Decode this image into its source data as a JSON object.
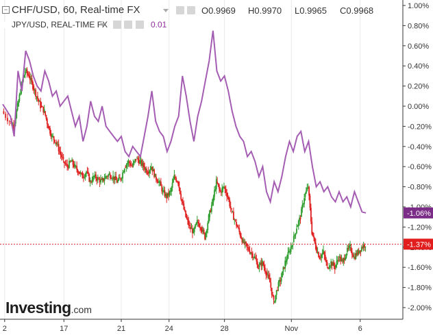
{
  "header": {
    "symbol_title": "CHF/USD, 60, Real-time FX",
    "ohlc": [
      {
        "label": "O",
        "value": "0.9969"
      },
      {
        "label": "H",
        "value": "0.9970"
      },
      {
        "label": "L",
        "value": "0.9965"
      },
      {
        "label": "C",
        "value": "0.9968"
      }
    ],
    "compare_title": "JPY/USD, REAL-TIME FX",
    "compare_value": "0.01"
  },
  "logo": {
    "text": "Investing",
    "suffix": ".com"
  },
  "colors": {
    "compare_line": "#a45cb3",
    "up_candle": "#2e9e2e",
    "down_candle": "#e02020",
    "axis_text": "#333333",
    "grid": "#e8e8e8",
    "current_line": "#e02020",
    "badge_purple": "#7b2c86",
    "badge_red": "#e11d1d"
  },
  "chart_data": {
    "type": "line",
    "y_axis": {
      "unit": "percent change",
      "range": [
        -2.1,
        1.05
      ],
      "ticks": [
        1.0,
        0.8,
        0.6,
        0.4,
        0.2,
        0.0,
        -0.2,
        -0.4,
        -0.6,
        -0.8,
        -1.0,
        -1.2,
        -1.4,
        -1.6,
        -1.8,
        -2.0
      ],
      "tick_labels": [
        "1.00%",
        "0.80%",
        "0.60%",
        "0.40%",
        "0.20%",
        "0.00%",
        "-0.20%",
        "-0.40%",
        "-0.60%",
        "-0.80%",
        "-1.00%",
        "-1.20%",
        "-1.40%",
        "-1.60%",
        "-1.80%",
        "-2.00%"
      ]
    },
    "x_axis": {
      "tick_labels": [
        "2",
        "17",
        "21",
        "24",
        "28",
        "Nov",
        "6"
      ],
      "range": [
        0,
        100
      ],
      "tick_positions": [
        0.5,
        16,
        31,
        43.5,
        58,
        75.5,
        93.5
      ]
    },
    "grid": "vertical",
    "series": [
      {
        "name": "JPY/USD",
        "style": "line",
        "x": [
          0,
          2,
          3,
          4,
          5,
          6,
          7,
          8,
          9,
          10,
          11,
          12,
          13,
          14,
          15,
          16,
          17,
          18,
          19,
          20,
          21,
          22,
          23,
          24,
          25,
          26,
          27,
          28,
          29,
          30,
          31,
          32,
          33,
          34,
          35,
          36,
          37,
          38,
          39,
          40,
          41,
          42,
          43,
          44,
          45,
          46,
          47,
          48,
          49,
          50,
          51,
          52,
          53,
          54,
          55,
          56,
          57,
          58,
          59,
          60,
          61,
          62,
          63,
          64,
          65,
          66,
          67,
          68,
          69,
          70,
          71,
          72,
          73,
          74,
          75,
          76,
          77,
          78,
          79,
          80,
          81,
          82,
          83,
          84,
          85,
          86,
          87,
          88,
          89,
          90,
          91,
          92,
          93,
          94,
          95
        ],
        "values": [
          0.02,
          -0.1,
          -0.3,
          0.35,
          0.15,
          0.55,
          0.45,
          0.3,
          0.2,
          0.15,
          0.35,
          0.25,
          0.1,
          0.15,
          0.0,
          0.05,
          0.1,
          -0.05,
          -0.2,
          -0.1,
          -0.35,
          -0.2,
          0.05,
          -0.1,
          -0.15,
          0.0,
          -0.2,
          -0.25,
          -0.3,
          -0.35,
          -0.3,
          -0.45,
          -0.5,
          -0.4,
          -0.45,
          -0.5,
          -0.3,
          -0.1,
          0.15,
          -0.15,
          -0.25,
          -0.3,
          -0.45,
          -0.35,
          -0.2,
          -0.1,
          0.3,
          0.1,
          -0.15,
          -0.35,
          -0.1,
          0.05,
          0.25,
          0.45,
          0.75,
          0.35,
          0.25,
          0.3,
          0.15,
          -0.05,
          -0.2,
          -0.3,
          -0.35,
          -0.5,
          -0.45,
          -0.55,
          -0.7,
          -0.6,
          -0.85,
          -0.95,
          -0.75,
          -0.85,
          -0.7,
          -0.5,
          -0.35,
          -0.45,
          -0.3,
          -0.25,
          -0.45,
          -0.35,
          -0.6,
          -0.8,
          -0.75,
          -0.85,
          -0.8,
          -0.9,
          -0.95,
          -0.85,
          -0.95,
          -0.9,
          -1.0,
          -0.85,
          -0.95,
          -1.05,
          -1.06
        ]
      },
      {
        "name": "CHF/USD",
        "style": "candlestick",
        "x": [
          0,
          2,
          3,
          4,
          5,
          6,
          7,
          8,
          9,
          10,
          11,
          12,
          13,
          14,
          15,
          16,
          17,
          18,
          19,
          20,
          21,
          22,
          23,
          24,
          25,
          26,
          27,
          28,
          29,
          30,
          31,
          32,
          33,
          34,
          35,
          36,
          37,
          38,
          39,
          40,
          41,
          42,
          43,
          44,
          45,
          46,
          47,
          48,
          49,
          50,
          51,
          52,
          53,
          54,
          55,
          56,
          57,
          58,
          59,
          60,
          61,
          62,
          63,
          64,
          65,
          66,
          67,
          68,
          69,
          70,
          71,
          72,
          73,
          74,
          75,
          76,
          77,
          78,
          79,
          80,
          81,
          82,
          83,
          84,
          85,
          86,
          87,
          88,
          89,
          90,
          91,
          92,
          93,
          94,
          95
        ],
        "values": [
          -0.05,
          -0.15,
          -0.2,
          0.0,
          0.2,
          0.35,
          0.3,
          0.2,
          0.1,
          0.0,
          -0.05,
          -0.2,
          -0.3,
          -0.35,
          -0.45,
          -0.55,
          -0.6,
          -0.55,
          -0.6,
          -0.65,
          -0.7,
          -0.65,
          -0.75,
          -0.7,
          -0.72,
          -0.75,
          -0.7,
          -0.68,
          -0.7,
          -0.75,
          -0.72,
          -0.6,
          -0.55,
          -0.6,
          -0.52,
          -0.55,
          -0.6,
          -0.65,
          -0.6,
          -0.7,
          -0.75,
          -0.85,
          -0.9,
          -0.85,
          -0.7,
          -0.75,
          -0.95,
          -1.1,
          -1.2,
          -1.25,
          -1.15,
          -1.2,
          -1.3,
          -1.1,
          -0.95,
          -0.75,
          -0.85,
          -0.8,
          -0.9,
          -1.05,
          -1.15,
          -1.25,
          -1.35,
          -1.4,
          -1.45,
          -1.5,
          -1.6,
          -1.55,
          -1.65,
          -1.75,
          -1.95,
          -1.8,
          -1.7,
          -1.55,
          -1.45,
          -1.35,
          -1.2,
          -1.1,
          -0.9,
          -0.8,
          -1.25,
          -1.4,
          -1.5,
          -1.45,
          -1.6,
          -1.55,
          -1.6,
          -1.5,
          -1.55,
          -1.45,
          -1.4,
          -1.5,
          -1.45,
          -1.4,
          -1.37
        ]
      }
    ],
    "last_value_labels": [
      "-1.06%",
      "-1.37%"
    ],
    "current_price_line": -1.37
  }
}
